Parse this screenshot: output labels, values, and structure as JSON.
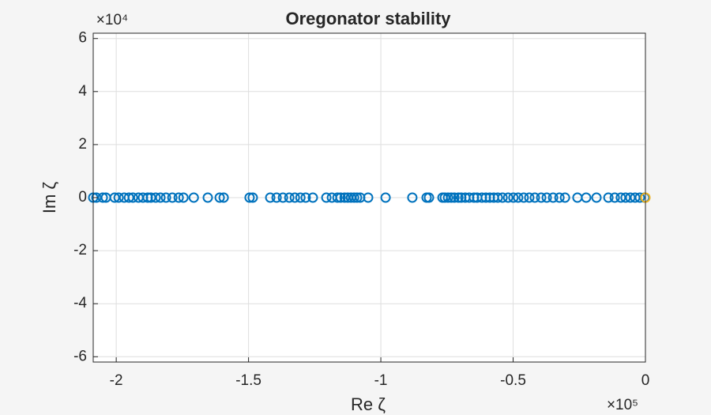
{
  "chart_data": {
    "type": "scatter",
    "title": "Oregonator stability",
    "x_label": "Re ζ",
    "y_label": "Im ζ",
    "x_multiplier": "×10⁵",
    "y_multiplier": "×10⁴",
    "xlim": [
      -2.087,
      0
    ],
    "ylim": [
      -6.2,
      6.2
    ],
    "xticks": [
      -2,
      -1.5,
      -1,
      -0.5,
      0
    ],
    "yticks": [
      -6,
      -4,
      -2,
      0,
      2,
      4,
      6
    ],
    "grid": true,
    "series": [
      {
        "color": "#0072bd",
        "x": [
          -2.087,
          -2.075,
          -2.051,
          -2.039,
          -2.006,
          -1.991,
          -1.97,
          -1.952,
          -1.937,
          -1.916,
          -1.899,
          -1.881,
          -1.869,
          -1.851,
          -1.833,
          -1.812,
          -1.788,
          -1.764,
          -1.746,
          -1.707,
          -1.654,
          -1.609,
          -1.594,
          -1.496,
          -1.484,
          -1.418,
          -1.394,
          -1.37,
          -1.346,
          -1.325,
          -1.304,
          -1.284,
          -1.257,
          -1.206,
          -1.185,
          -1.164,
          -1.152,
          -1.137,
          -1.125,
          -1.113,
          -1.101,
          -1.09,
          -1.078,
          -1.048,
          -0.982,
          -0.881,
          -0.827,
          -0.818,
          -0.767,
          -0.758,
          -0.746,
          -0.734,
          -0.722,
          -0.707,
          -0.696,
          -0.681,
          -0.666,
          -0.648,
          -0.636,
          -0.618,
          -0.603,
          -0.588,
          -0.573,
          -0.558,
          -0.54,
          -0.519,
          -0.499,
          -0.481,
          -0.46,
          -0.439,
          -0.418,
          -0.394,
          -0.373,
          -0.349,
          -0.325,
          -0.304,
          -0.257,
          -0.224,
          -0.185,
          -0.14,
          -0.116,
          -0.093,
          -0.075,
          -0.057,
          -0.039,
          -0.021,
          -0.003
        ],
        "y": [
          0,
          0,
          0,
          0,
          0,
          0,
          0,
          0,
          0,
          0,
          0,
          0,
          0,
          0,
          0,
          0,
          0,
          0,
          0,
          0,
          0,
          0,
          0,
          0,
          0,
          0,
          0,
          0,
          0,
          0,
          0,
          0,
          0,
          0,
          0,
          0,
          0,
          0,
          0,
          0,
          0,
          0,
          0,
          0,
          0,
          0,
          0,
          0,
          0,
          0,
          0,
          0,
          0,
          0,
          0,
          0,
          0,
          0,
          0,
          0,
          0,
          0,
          0,
          0,
          0,
          0,
          0,
          0,
          0,
          0,
          0,
          0,
          0,
          0,
          0,
          0,
          0,
          0,
          0,
          0,
          0,
          0,
          0,
          0,
          0,
          0,
          0
        ]
      },
      {
        "color": "#edb120",
        "x": [
          0
        ],
        "y": [
          0
        ]
      }
    ]
  }
}
